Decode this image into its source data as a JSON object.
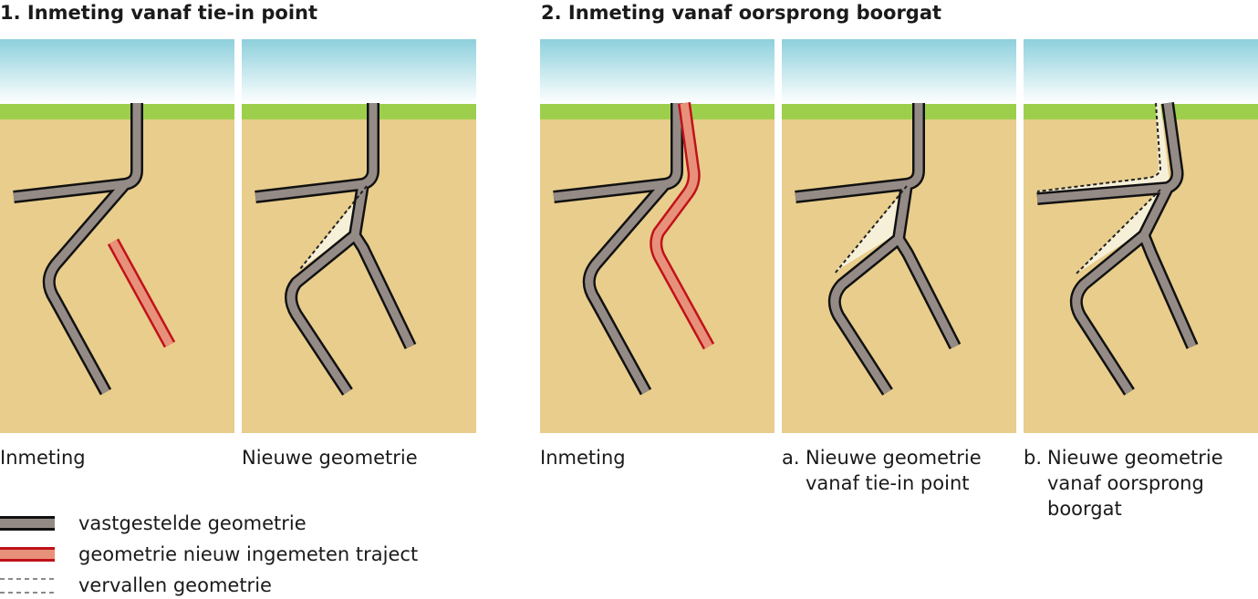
{
  "sections": [
    {
      "title": "1. Inmeting vanaf tie-in point"
    },
    {
      "title": "2. Inmeting vanaf oorsprong boorgat"
    }
  ],
  "panels": [
    {
      "caption": "Inmeting"
    },
    {
      "caption": "Nieuwe geometrie"
    },
    {
      "caption": "Inmeting"
    },
    {
      "letter": "a.",
      "caption": "Nieuwe geometrie vanaf tie-in point"
    },
    {
      "letter": "b.",
      "caption": "Nieuwe geometrie vanaf oorsprong boorgat"
    }
  ],
  "legend": [
    {
      "label": "vastgestelde geometrie"
    },
    {
      "label": "geometrie nieuw ingemeten traject"
    },
    {
      "label": "vervallen geometrie"
    }
  ],
  "colors": {
    "sky_top": "#8dd0dc",
    "sky_bottom": "#ffffff",
    "grass": "#9dcf4c",
    "soil": "#e8cd8c",
    "pipe_fill": "#958b86",
    "pipe_outline": "#111111",
    "new_fill": "#e8917a",
    "new_outline": "#c0121b",
    "removed_area": "#f7f0d9",
    "removed_line": "#222222"
  }
}
